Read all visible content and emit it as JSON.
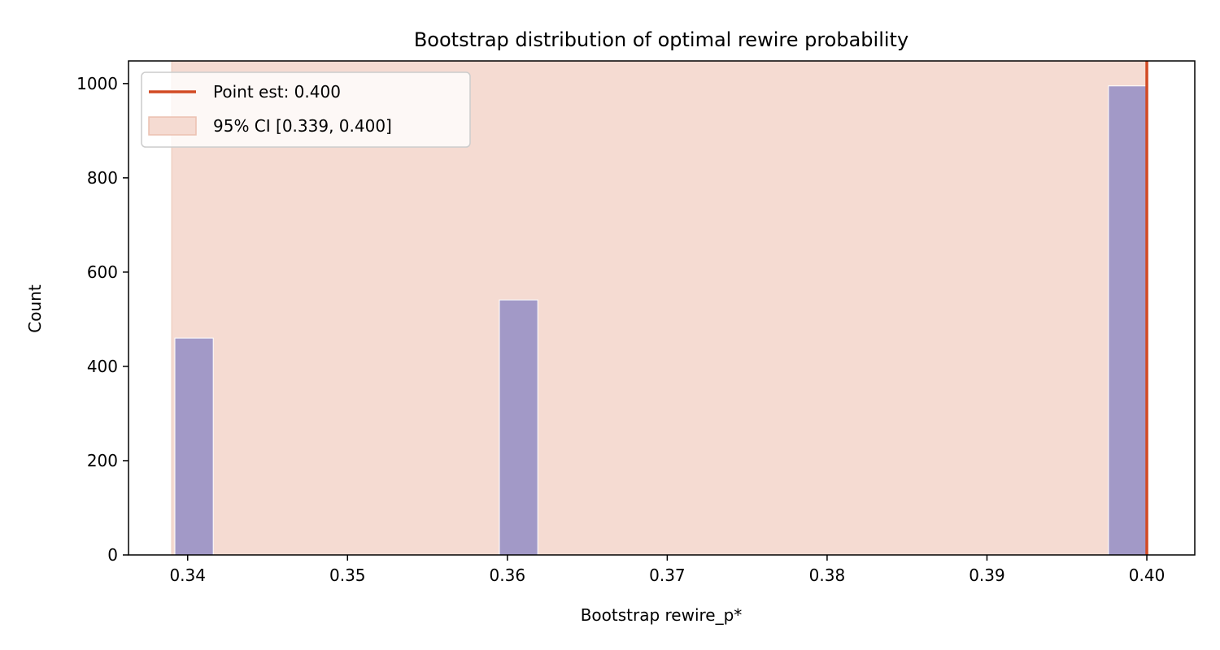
{
  "chart_data": {
    "type": "bar",
    "title": "Bootstrap distribution of optimal rewire probability",
    "xlabel": "Bootstrap rewire_p*",
    "ylabel": "Count",
    "xlim": [
      0.3363,
      0.403
    ],
    "ylim": [
      0,
      1048
    ],
    "xticks": [
      0.34,
      0.35,
      0.36,
      0.37,
      0.38,
      0.39,
      0.4
    ],
    "xtick_labels": [
      "0.34",
      "0.35",
      "0.36",
      "0.37",
      "0.38",
      "0.39",
      "0.40"
    ],
    "yticks": [
      0,
      200,
      400,
      600,
      800,
      1000
    ],
    "ytick_labels": [
      "0",
      "200",
      "400",
      "600",
      "800",
      "1000"
    ],
    "bars": [
      {
        "x0": 0.3392,
        "x1": 0.3416,
        "count": 460
      },
      {
        "x0": 0.3595,
        "x1": 0.3619,
        "count": 541
      },
      {
        "x0": 0.3976,
        "x1": 0.4,
        "count": 995
      }
    ],
    "point_estimate": {
      "x": 0.4,
      "label": "Point est: 0.400"
    },
    "ci": {
      "low": 0.339,
      "high": 0.4,
      "label": "95% CI [0.339, 0.400]"
    },
    "legend": "top-left",
    "grid": false,
    "colors": {
      "bars": "#a299c7",
      "ci_fill": "#f5dbd2",
      "point_line": "#d24a24"
    }
  }
}
